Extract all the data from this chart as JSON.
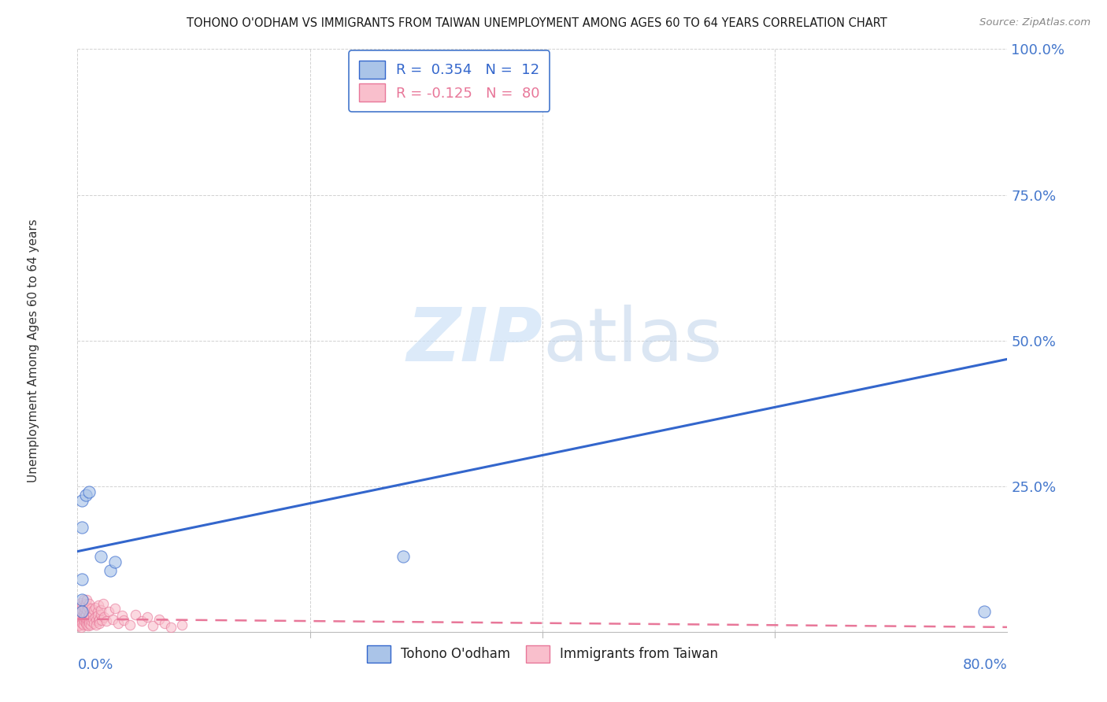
{
  "title": "TOHONO O'ODHAM VS IMMIGRANTS FROM TAIWAN UNEMPLOYMENT AMONG AGES 60 TO 64 YEARS CORRELATION CHART",
  "source": "Source: ZipAtlas.com",
  "ylabel": "Unemployment Among Ages 60 to 64 years",
  "xlim": [
    0.0,
    0.8
  ],
  "ylim": [
    0.0,
    1.0
  ],
  "yticks": [
    0.0,
    0.25,
    0.5,
    0.75,
    1.0
  ],
  "yticklabels": [
    "",
    "25.0%",
    "50.0%",
    "75.0%",
    "100.0%"
  ],
  "xtick_left_label": "0.0%",
  "xtick_right_label": "80.0%",
  "background_color": "#ffffff",
  "grid_color": "#cccccc",
  "watermark_zip": "ZIP",
  "watermark_atlas": "atlas",
  "legend_blue_label": "R =  0.354   N =  12",
  "legend_pink_label": "R = -0.125   N =  80",
  "blue_fill_color": "#aac4e8",
  "pink_fill_color": "#f9bfcc",
  "blue_edge_color": "#3366cc",
  "pink_edge_color": "#e87799",
  "bottom_legend_blue": "Tohono O'odham",
  "bottom_legend_pink": "Immigrants from Taiwan",
  "blue_scatter": [
    [
      0.004,
      0.225
    ],
    [
      0.007,
      0.235
    ],
    [
      0.01,
      0.24
    ],
    [
      0.02,
      0.13
    ],
    [
      0.028,
      0.105
    ],
    [
      0.032,
      0.12
    ],
    [
      0.004,
      0.18
    ],
    [
      0.004,
      0.09
    ],
    [
      0.004,
      0.055
    ],
    [
      0.004,
      0.035
    ],
    [
      0.28,
      0.13
    ],
    [
      0.78,
      0.035
    ]
  ],
  "pink_scatter": [
    [
      0.0,
      0.015
    ],
    [
      0.0,
      0.02
    ],
    [
      0.001,
      0.01
    ],
    [
      0.001,
      0.025
    ],
    [
      0.001,
      0.03
    ],
    [
      0.002,
      0.018
    ],
    [
      0.002,
      0.04
    ],
    [
      0.002,
      0.012
    ],
    [
      0.003,
      0.025
    ],
    [
      0.003,
      0.035
    ],
    [
      0.003,
      0.008
    ],
    [
      0.003,
      0.05
    ],
    [
      0.004,
      0.02
    ],
    [
      0.004,
      0.015
    ],
    [
      0.004,
      0.038
    ],
    [
      0.004,
      0.045
    ],
    [
      0.005,
      0.022
    ],
    [
      0.005,
      0.03
    ],
    [
      0.005,
      0.012
    ],
    [
      0.005,
      0.055
    ],
    [
      0.006,
      0.018
    ],
    [
      0.006,
      0.035
    ],
    [
      0.006,
      0.025
    ],
    [
      0.006,
      0.042
    ],
    [
      0.007,
      0.02
    ],
    [
      0.007,
      0.015
    ],
    [
      0.007,
      0.048
    ],
    [
      0.007,
      0.03
    ],
    [
      0.008,
      0.022
    ],
    [
      0.008,
      0.038
    ],
    [
      0.008,
      0.012
    ],
    [
      0.008,
      0.055
    ],
    [
      0.009,
      0.025
    ],
    [
      0.009,
      0.018
    ],
    [
      0.009,
      0.042
    ],
    [
      0.009,
      0.01
    ],
    [
      0.01,
      0.03
    ],
    [
      0.01,
      0.02
    ],
    [
      0.01,
      0.048
    ],
    [
      0.01,
      0.015
    ],
    [
      0.011,
      0.035
    ],
    [
      0.011,
      0.025
    ],
    [
      0.011,
      0.012
    ],
    [
      0.012,
      0.04
    ],
    [
      0.012,
      0.018
    ],
    [
      0.013,
      0.03
    ],
    [
      0.013,
      0.022
    ],
    [
      0.014,
      0.038
    ],
    [
      0.014,
      0.015
    ],
    [
      0.015,
      0.025
    ],
    [
      0.015,
      0.042
    ],
    [
      0.016,
      0.02
    ],
    [
      0.016,
      0.012
    ],
    [
      0.017,
      0.035
    ],
    [
      0.017,
      0.028
    ],
    [
      0.018,
      0.018
    ],
    [
      0.018,
      0.045
    ],
    [
      0.019,
      0.022
    ],
    [
      0.019,
      0.015
    ],
    [
      0.02,
      0.03
    ],
    [
      0.02,
      0.038
    ],
    [
      0.021,
      0.02
    ],
    [
      0.022,
      0.048
    ],
    [
      0.023,
      0.025
    ],
    [
      0.025,
      0.018
    ],
    [
      0.027,
      0.035
    ],
    [
      0.03,
      0.022
    ],
    [
      0.032,
      0.04
    ],
    [
      0.035,
      0.015
    ],
    [
      0.038,
      0.028
    ],
    [
      0.04,
      0.02
    ],
    [
      0.045,
      0.012
    ],
    [
      0.05,
      0.03
    ],
    [
      0.055,
      0.018
    ],
    [
      0.06,
      0.025
    ],
    [
      0.065,
      0.01
    ],
    [
      0.07,
      0.022
    ],
    [
      0.075,
      0.015
    ],
    [
      0.08,
      0.008
    ],
    [
      0.09,
      0.012
    ]
  ],
  "blue_line_x": [
    0.0,
    0.8
  ],
  "blue_line_y": [
    0.138,
    0.468
  ],
  "pink_line_x": [
    0.0,
    0.8
  ],
  "pink_line_y": [
    0.022,
    0.008
  ],
  "dot_size_blue": 120,
  "dot_size_pink": 80
}
